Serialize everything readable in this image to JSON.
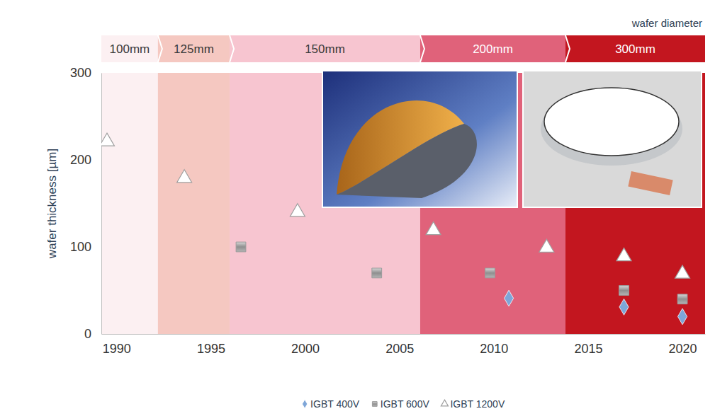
{
  "chart_data": {
    "type": "scatter",
    "y_label": "wafer thickness [µm]",
    "xlim": [
      1989.2,
      2021.2
    ],
    "xticks": [
      1990,
      1995,
      2000,
      2005,
      2010,
      2015,
      2020
    ],
    "ylim": [
      0,
      300
    ],
    "yticks": [
      0,
      100,
      200,
      300
    ],
    "grid": false,
    "legend": "bottom",
    "band_title": "wafer diameter",
    "bands": [
      {
        "label": "100mm",
        "start": 1989.2,
        "end": 1992.2,
        "color": "#fcf0f2"
      },
      {
        "label": "125mm",
        "start": 1992.2,
        "end": 1996.0,
        "color": "#f5c8c1"
      },
      {
        "label": "150mm",
        "start": 1996.0,
        "end": 2006.1,
        "color": "#f7c5d0"
      },
      {
        "label": "200mm",
        "start": 2006.1,
        "end": 2013.8,
        "color": "#e0627a"
      },
      {
        "label": "300mm",
        "start": 2013.8,
        "end": 2021.2,
        "color": "#c3161f"
      }
    ],
    "series": [
      {
        "name": "IGBT 400V",
        "color": "#7ea6d8",
        "marker": "diamond",
        "x": [
          2010.8,
          2016.9,
          2020.0
        ],
        "values": [
          41,
          31,
          20
        ]
      },
      {
        "name": "IGBT 600V",
        "color": "#9b9b9b",
        "marker": "square",
        "x": [
          1996.6,
          2003.8,
          2009.8,
          2016.9,
          2020.0
        ],
        "values": [
          100,
          70,
          70,
          50,
          40
        ]
      },
      {
        "name": "IGBT 1200V",
        "color": "#ffffff",
        "marker": "triangle",
        "x": [
          1989.5,
          1993.6,
          1999.6,
          2006.8,
          2012.8,
          2016.9,
          2020.0
        ],
        "values": [
          221,
          179,
          140,
          119,
          99,
          89,
          69
        ]
      }
    ]
  }
}
